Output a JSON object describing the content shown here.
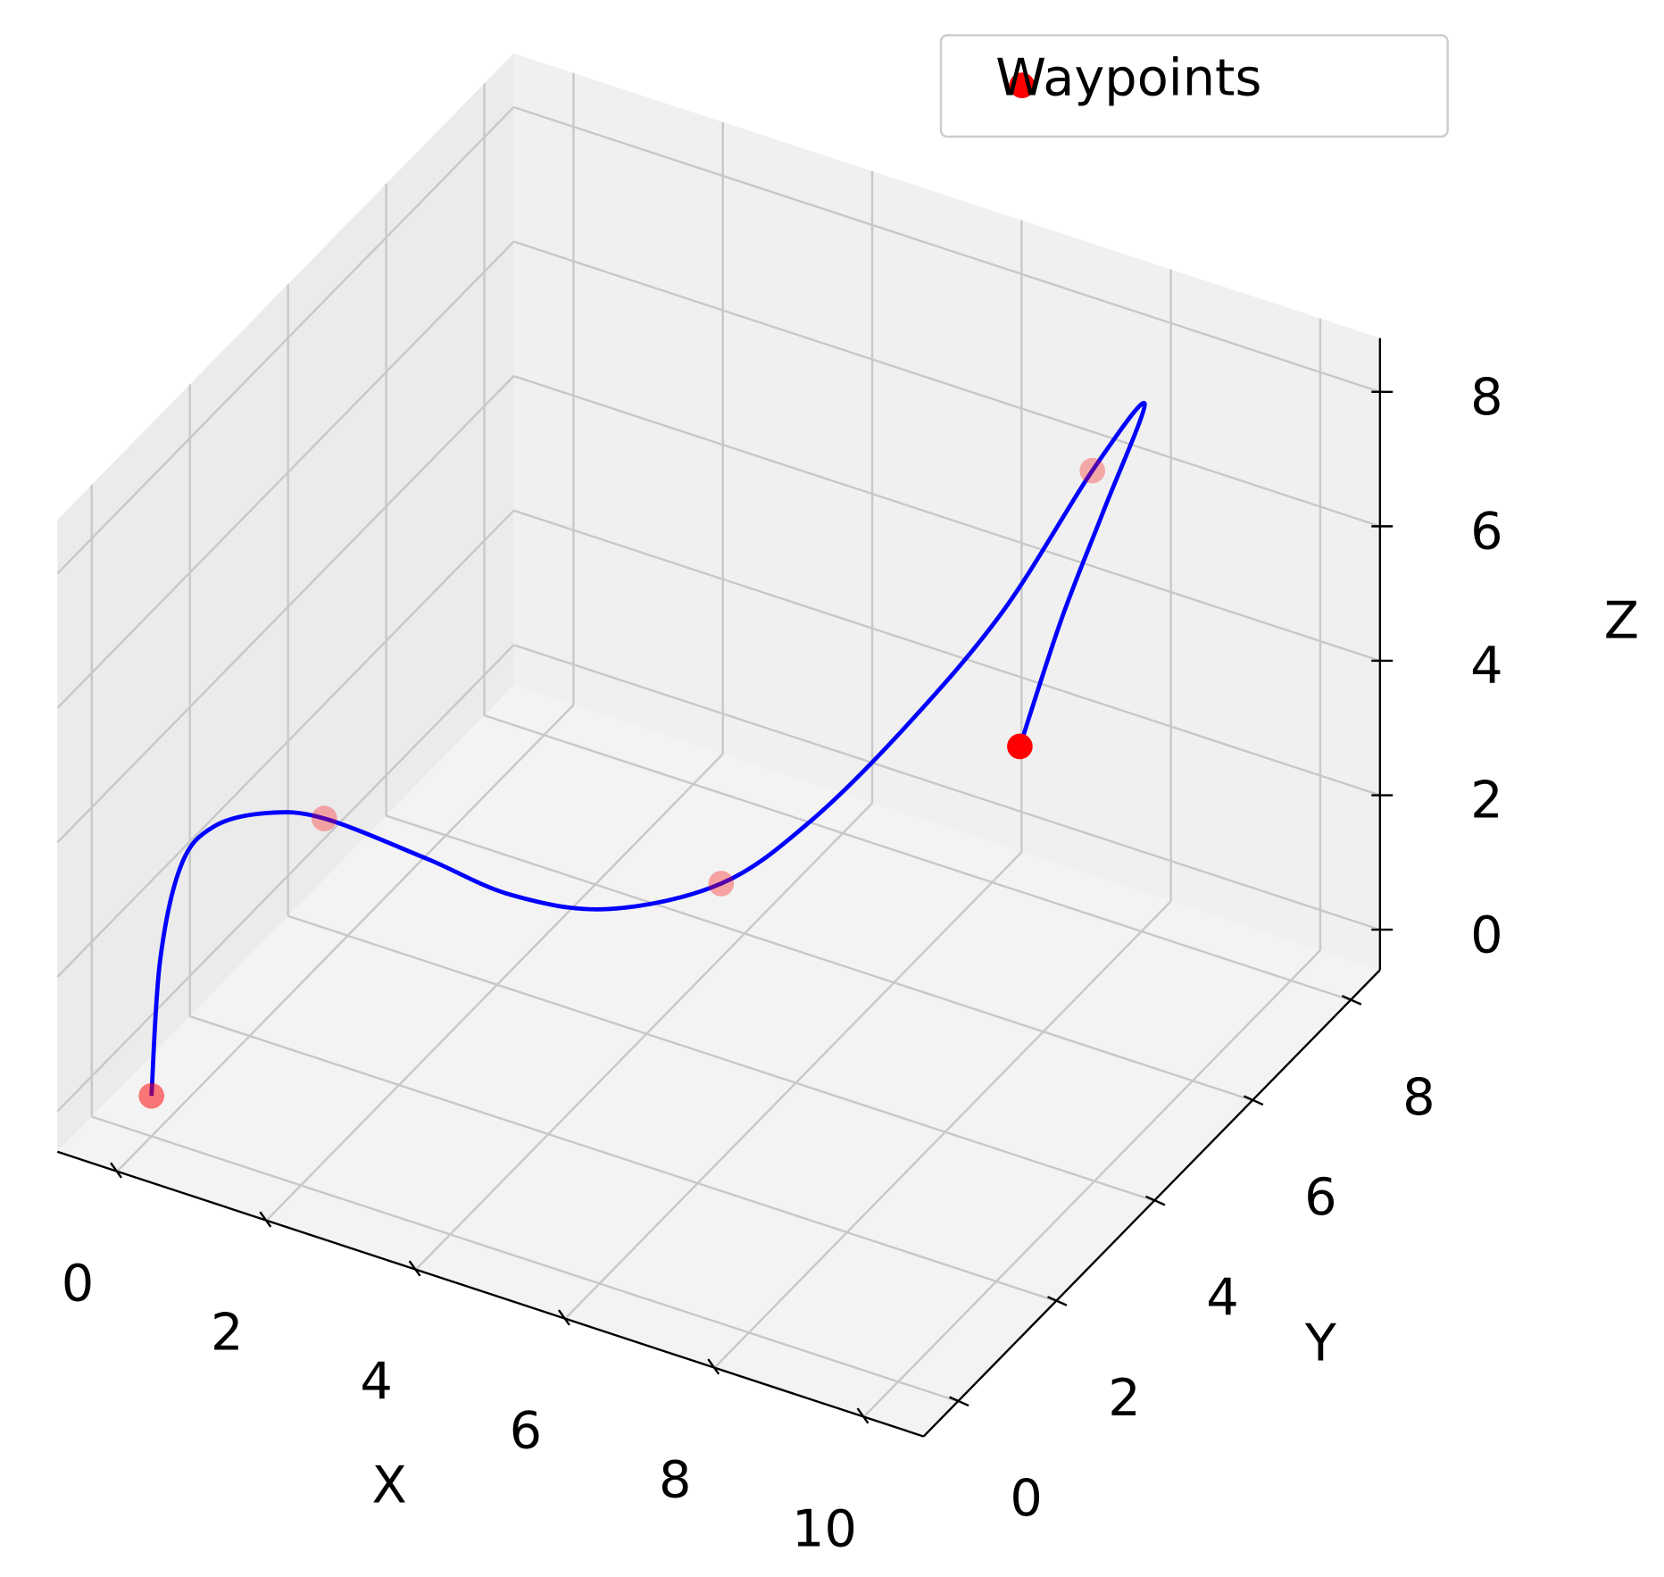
{
  "chart_data": {
    "type": "scatter3d",
    "xlabel": "X",
    "ylabel": "Y",
    "zlabel": "Z",
    "xlim": [
      -0.8,
      10.8
    ],
    "ylim": [
      -0.7,
      8.6
    ],
    "zlim": [
      -0.6,
      8.8
    ],
    "xticks": [
      0,
      2,
      4,
      6,
      8,
      10
    ],
    "yticks": [
      0,
      2,
      4,
      6,
      8
    ],
    "zticks": [
      0,
      2,
      4,
      6,
      8
    ],
    "grid": true,
    "legend": {
      "corner": "upper right"
    },
    "series": [
      {
        "type": "line",
        "color": "#0000ff",
        "x": [
          0,
          0.05,
          0.17,
          0.36,
          0.67,
          1,
          2.03,
          2.89,
          3.86,
          5,
          5.72,
          6.5,
          7.28,
          8,
          8.7,
          8.8,
          8.9,
          9
        ],
        "y": [
          0,
          0.1,
          0.35,
          0.72,
          1.33,
          2,
          2.52,
          2.95,
          3.43,
          4,
          4.72,
          5.5,
          6.28,
          7,
          7,
          6,
          5,
          4
        ],
        "z": [
          0,
          1.96,
          3.24,
          3.6,
          3.46,
          3,
          2.39,
          1.84,
          1.63,
          2,
          2.65,
          3.78,
          5.19,
          7,
          8.25,
          7.42,
          6.61,
          5.5
        ]
      },
      {
        "type": "scatter",
        "name": "Waypoints",
        "color": "#ff0000",
        "depthshade": true,
        "x": [
          0,
          1,
          5,
          8,
          9
        ],
        "y": [
          0,
          2,
          4,
          7,
          4
        ],
        "z": [
          0,
          3,
          2,
          7,
          5.5
        ]
      }
    ]
  }
}
